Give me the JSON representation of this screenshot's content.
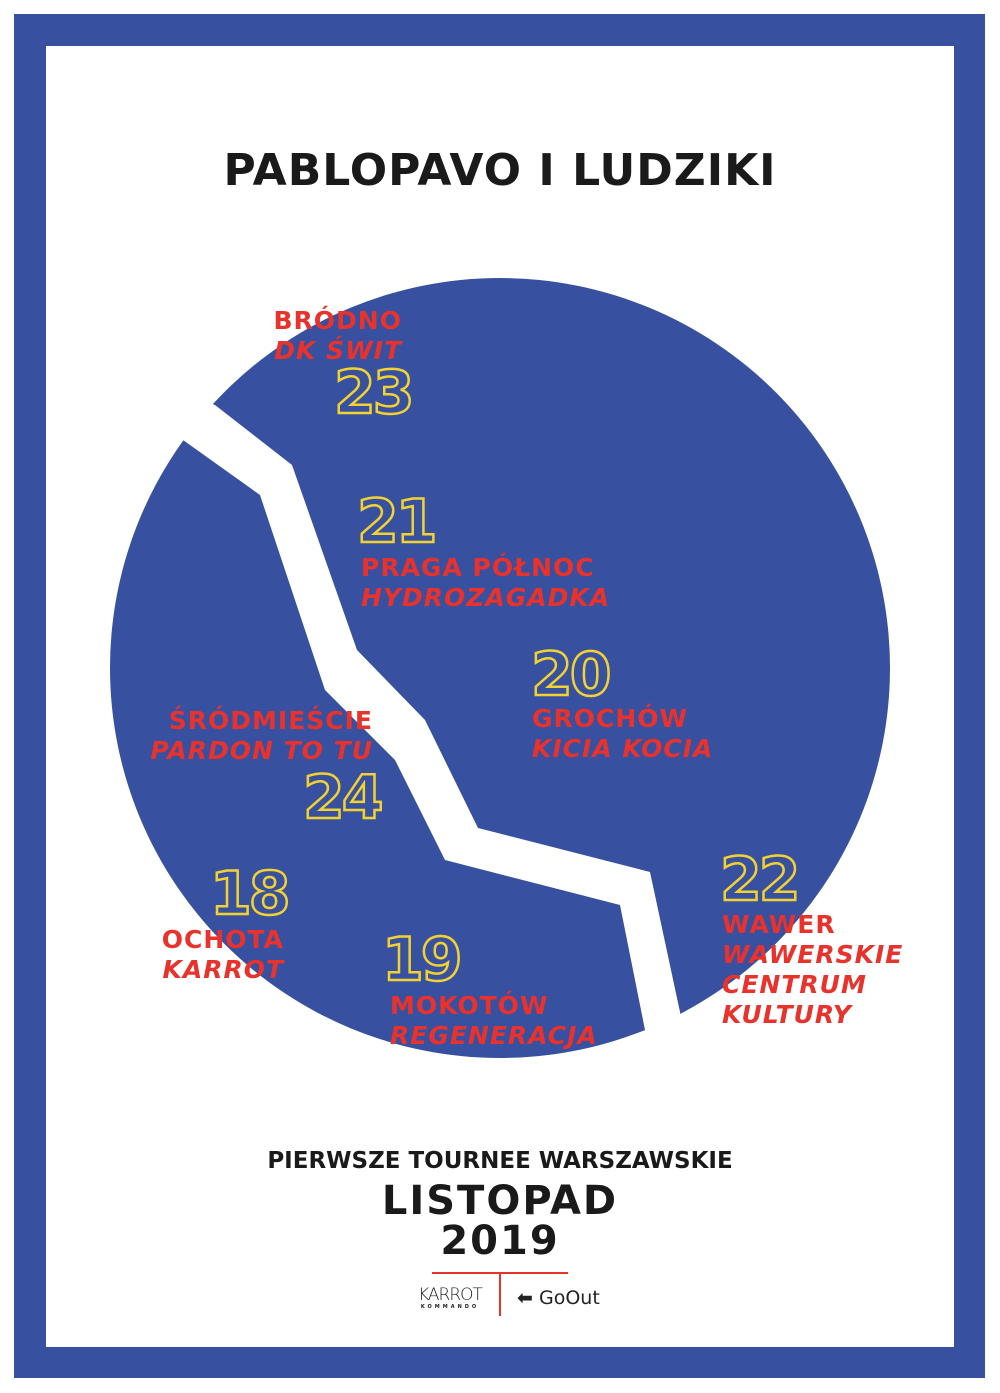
{
  "title": "PABLOPAVO I LUDZIKI",
  "colors": {
    "frame": "#3850a0",
    "circle": "#3850a0",
    "district_text": "#e8322b",
    "date_outline": "#f2d230"
  },
  "concerts": [
    {
      "day": "23",
      "district": "BRÓDNO",
      "venue": "DK ŚWIT"
    },
    {
      "day": "21",
      "district": "PRAGA PÓŁNOC",
      "venue": "HYDROZAGADKA"
    },
    {
      "day": "20",
      "district": "GROCHÓW",
      "venue": "KICIA KOCIA"
    },
    {
      "day": "24",
      "district": "ŚRÓDMIEŚCIE",
      "venue": "PARDON TO TU"
    },
    {
      "day": "18",
      "district": "OCHOTA",
      "venue": "KARROT"
    },
    {
      "day": "19",
      "district": "MOKOTÓW",
      "venue": "REGENERACJA"
    },
    {
      "day": "22",
      "district": "WAWER",
      "venue_lines": [
        "WAWERSKIE",
        "CENTRUM",
        "KULTURY"
      ]
    }
  ],
  "subtitle": "PIERWSZE TOURNEE WARSZAWSKIE",
  "month": "LISTOPAD",
  "year": "2019",
  "logos": {
    "left": "KARROT",
    "left_sub": "KOMMANDO",
    "right": "GoOut"
  }
}
